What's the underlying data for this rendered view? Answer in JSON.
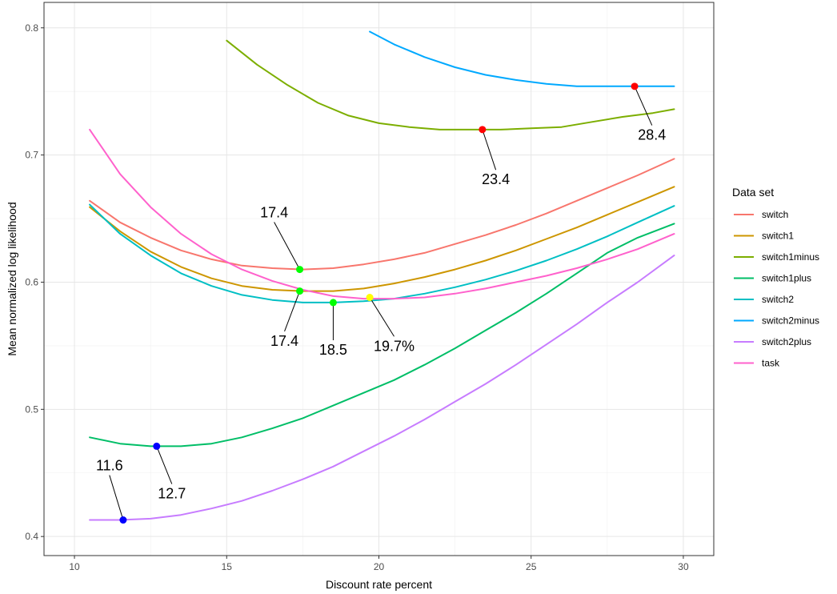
{
  "chart_data": {
    "type": "line",
    "xlabel": "Discount rate percent",
    "ylabel": "Mean normalized log likelihood",
    "xlim": [
      9,
      31
    ],
    "ylim": [
      0.385,
      0.82
    ],
    "x_ticks": [
      10,
      15,
      20,
      25,
      30
    ],
    "x_tick_labels": [
      "10",
      "15",
      "20",
      "25",
      "30"
    ],
    "y_ticks": [
      0.4,
      0.5,
      0.6,
      0.7,
      0.8
    ],
    "y_tick_labels": [
      "0.4",
      "0.5",
      "0.6",
      "0.7",
      "0.8"
    ],
    "grid": true,
    "legend": {
      "title": "Data set",
      "position": "right"
    },
    "series": [
      {
        "name": "switch",
        "color": "#F8766D",
        "x": [
          10.5,
          11.5,
          12.5,
          13.5,
          14.5,
          15.5,
          16.5,
          17.5,
          18.5,
          19.5,
          20.5,
          21.5,
          22.5,
          23.5,
          24.5,
          25.5,
          26.5,
          27.5,
          28.5,
          29.7
        ],
        "y": [
          0.664,
          0.647,
          0.635,
          0.625,
          0.618,
          0.613,
          0.611,
          0.61,
          0.611,
          0.614,
          0.618,
          0.623,
          0.63,
          0.637,
          0.645,
          0.654,
          0.664,
          0.674,
          0.684,
          0.697
        ]
      },
      {
        "name": "switch1",
        "color": "#CD9600",
        "x": [
          10.5,
          11.5,
          12.5,
          13.5,
          14.5,
          15.5,
          16.5,
          17.5,
          18.5,
          19.5,
          20.5,
          21.5,
          22.5,
          23.5,
          24.5,
          25.5,
          26.5,
          27.5,
          28.5,
          29.7
        ],
        "y": [
          0.659,
          0.64,
          0.624,
          0.612,
          0.603,
          0.597,
          0.594,
          0.593,
          0.593,
          0.595,
          0.599,
          0.604,
          0.61,
          0.617,
          0.625,
          0.634,
          0.643,
          0.653,
          0.663,
          0.675
        ]
      },
      {
        "name": "switch1minus",
        "color": "#7CAE00",
        "x": [
          15,
          16,
          17,
          18,
          19,
          20,
          21,
          22,
          23,
          24,
          25,
          26,
          27,
          28,
          29,
          29.7
        ],
        "y": [
          0.79,
          0.771,
          0.755,
          0.741,
          0.731,
          0.725,
          0.722,
          0.72,
          0.72,
          0.72,
          0.721,
          0.722,
          0.726,
          0.73,
          0.733,
          0.736
        ]
      },
      {
        "name": "switch1plus",
        "color": "#00BE67",
        "x": [
          10.5,
          11.5,
          12.5,
          13.5,
          14.5,
          15.5,
          16.5,
          17.5,
          18.5,
          19.5,
          20.5,
          21.5,
          22.5,
          23.5,
          24.5,
          25.5,
          26.5,
          27.5,
          28.5,
          29.7
        ],
        "y": [
          0.478,
          0.473,
          0.471,
          0.471,
          0.473,
          0.478,
          0.485,
          0.493,
          0.503,
          0.513,
          0.523,
          0.535,
          0.548,
          0.562,
          0.576,
          0.591,
          0.607,
          0.623,
          0.635,
          0.646
        ]
      },
      {
        "name": "switch2",
        "color": "#00BFC4",
        "x": [
          10.5,
          11.5,
          12.5,
          13.5,
          14.5,
          15.5,
          16.5,
          17.5,
          18.5,
          19.5,
          20.5,
          21.5,
          22.5,
          23.5,
          24.5,
          25.5,
          26.5,
          27.5,
          28.5,
          29.7
        ],
        "y": [
          0.661,
          0.638,
          0.621,
          0.607,
          0.597,
          0.59,
          0.586,
          0.584,
          0.584,
          0.585,
          0.587,
          0.591,
          0.596,
          0.602,
          0.609,
          0.617,
          0.626,
          0.636,
          0.647,
          0.66
        ]
      },
      {
        "name": "switch2minus",
        "color": "#00A9FF",
        "x": [
          19.7,
          20.5,
          21.5,
          22.5,
          23.5,
          24.5,
          25.5,
          26.5,
          27.5,
          28.5,
          29.7
        ],
        "y": [
          0.797,
          0.787,
          0.777,
          0.769,
          0.763,
          0.759,
          0.756,
          0.754,
          0.754,
          0.754,
          0.754
        ]
      },
      {
        "name": "switch2plus",
        "color": "#C77CFF",
        "x": [
          10.5,
          11.5,
          12.5,
          13.5,
          14.5,
          15.5,
          16.5,
          17.5,
          18.5,
          19.5,
          20.5,
          21.5,
          22.5,
          23.5,
          24.5,
          25.5,
          26.5,
          27.5,
          28.5,
          29.7
        ],
        "y": [
          0.413,
          0.413,
          0.414,
          0.417,
          0.422,
          0.428,
          0.436,
          0.445,
          0.455,
          0.467,
          0.479,
          0.492,
          0.506,
          0.52,
          0.535,
          0.551,
          0.567,
          0.584,
          0.6,
          0.621
        ]
      },
      {
        "name": "task",
        "color": "#FF61CC",
        "x": [
          10.5,
          11.5,
          12.5,
          13.5,
          14.5,
          15.5,
          16.5,
          17.5,
          18.5,
          19.5,
          20.5,
          21.5,
          22.5,
          23.5,
          24.5,
          25.5,
          26.5,
          27.5,
          28.5,
          29.7
        ],
        "y": [
          0.72,
          0.685,
          0.659,
          0.638,
          0.622,
          0.61,
          0.601,
          0.594,
          0.589,
          0.587,
          0.587,
          0.588,
          0.591,
          0.595,
          0.6,
          0.605,
          0.611,
          0.618,
          0.626,
          0.638
        ]
      }
    ],
    "annotations": [
      {
        "label": "28.4",
        "x": 28.4,
        "y": 0.754,
        "text_x": 28.97,
        "text_y": 0.712,
        "point_color": "#FF0000"
      },
      {
        "label": "23.4",
        "x": 23.4,
        "y": 0.72,
        "text_x": 23.84,
        "text_y": 0.677,
        "point_color": "#FF0000"
      },
      {
        "label": "17.4",
        "x": 17.4,
        "y": 0.61,
        "text_x": 16.56,
        "text_y": 0.651,
        "point_color": "#00FF00"
      },
      {
        "label": "17.4",
        "x": 17.4,
        "y": 0.593,
        "text_x": 16.9,
        "text_y": 0.55,
        "point_color": "#00FF00"
      },
      {
        "label": "18.5",
        "x": 18.5,
        "y": 0.584,
        "text_x": 18.5,
        "text_y": 0.543,
        "point_color": "#00FF00"
      },
      {
        "label": "19.7%",
        "x": 19.7,
        "y": 0.588,
        "text_x": 20.5,
        "text_y": 0.546,
        "point_color": "#FFFF00"
      },
      {
        "label": "12.7",
        "x": 12.7,
        "y": 0.471,
        "text_x": 13.2,
        "text_y": 0.43,
        "point_color": "#0000FF"
      },
      {
        "label": "11.6",
        "x": 11.6,
        "y": 0.413,
        "text_x": 11.15,
        "text_y": 0.452,
        "point_color": "#0000FF"
      }
    ]
  }
}
